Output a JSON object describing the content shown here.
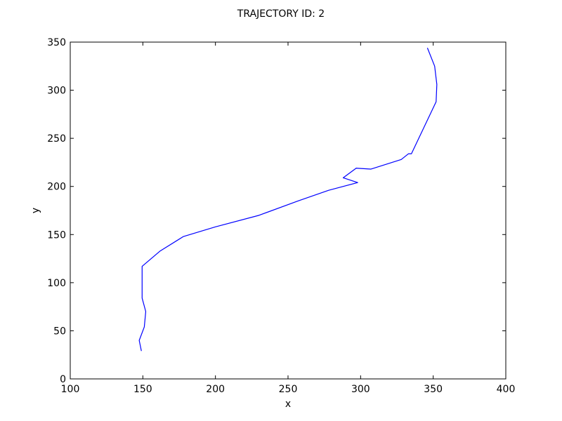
{
  "chart_data": {
    "type": "line",
    "title": "TRAJECTORY ID: 2",
    "xlabel": "x",
    "ylabel": "y",
    "xlim": [
      100,
      400
    ],
    "ylim": [
      0,
      350
    ],
    "xticks": [
      "100",
      "150",
      "200",
      "250",
      "300",
      "350",
      "400"
    ],
    "yticks": [
      "0",
      "50",
      "100",
      "150",
      "200",
      "250",
      "300",
      "350"
    ],
    "grid": false,
    "series": [
      {
        "color": "#0000ff",
        "x": [
          149,
          147.5,
          151,
          152,
          149.5,
          149.5,
          162,
          178,
          200,
          230,
          257,
          278,
          298,
          288,
          297,
          307,
          328,
          333,
          335,
          352,
          352.5,
          351,
          346
        ],
        "y": [
          29,
          40,
          54,
          70,
          84,
          117,
          133,
          148,
          158,
          170,
          185,
          196,
          204,
          209,
          219,
          218,
          228,
          234,
          234,
          288,
          306,
          325,
          344
        ]
      }
    ]
  }
}
